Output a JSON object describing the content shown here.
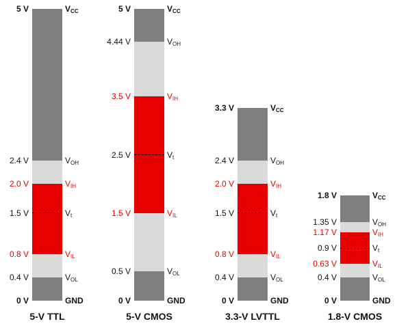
{
  "colors": {
    "dark": "#7f7f7f",
    "light": "#d9d9d9",
    "red": "#e60000",
    "text": "#111111",
    "red_text": "#e60000"
  },
  "families": [
    {
      "title": "5-V TTL",
      "levels": {
        "vcc": 5,
        "voh": 2.4,
        "vih": 2.0,
        "vt": 1.5,
        "vil": 0.8,
        "vol": 0.4,
        "gnd": 0
      },
      "left_labels": [
        {
          "v": 5,
          "text": "5 V",
          "bold": true
        },
        {
          "v": 2.4,
          "text": "2.4 V"
        },
        {
          "v": 2.0,
          "text": "2.0 V",
          "red": true
        },
        {
          "v": 1.5,
          "text": "1.5 V"
        },
        {
          "v": 0.8,
          "text": "0.8 V",
          "red": true
        },
        {
          "v": 0.4,
          "text": "0.4 V"
        },
        {
          "v": 0,
          "text": "0 V",
          "bold": true
        }
      ],
      "right_labels": [
        {
          "v": 5,
          "main": "V",
          "sub": "CC",
          "bold": true
        },
        {
          "v": 2.4,
          "main": "V",
          "sub": "OH"
        },
        {
          "v": 2.0,
          "main": "V",
          "sub": "IH",
          "red": true
        },
        {
          "v": 1.5,
          "main": "V",
          "sub": "t"
        },
        {
          "v": 0.8,
          "main": "V",
          "sub": "IL",
          "red": true
        },
        {
          "v": 0.4,
          "main": "V",
          "sub": "OL"
        },
        {
          "v": 0,
          "main": "GND",
          "sub": "",
          "bold": true
        }
      ]
    },
    {
      "title": "5-V CMOS",
      "levels": {
        "vcc": 5,
        "voh": 4.44,
        "vih": 3.5,
        "vt": 2.5,
        "vil": 1.5,
        "vol": 0.5,
        "gnd": 0
      },
      "left_labels": [
        {
          "v": 5,
          "text": "5 V",
          "bold": true
        },
        {
          "v": 4.44,
          "text": "4.44 V"
        },
        {
          "v": 3.5,
          "text": "3.5 V",
          "red": true
        },
        {
          "v": 2.5,
          "text": "2.5 V"
        },
        {
          "v": 1.5,
          "text": "1.5 V",
          "red": true
        },
        {
          "v": 0.5,
          "text": "0.5 V"
        },
        {
          "v": 0,
          "text": "0 V",
          "bold": true
        }
      ],
      "right_labels": [
        {
          "v": 5,
          "main": "V",
          "sub": "CC",
          "bold": true
        },
        {
          "v": 4.44,
          "main": "V",
          "sub": "OH"
        },
        {
          "v": 3.5,
          "main": "V",
          "sub": "IH",
          "red": true
        },
        {
          "v": 2.5,
          "main": "V",
          "sub": "t"
        },
        {
          "v": 1.5,
          "main": "V",
          "sub": "IL",
          "red": true
        },
        {
          "v": 0.5,
          "main": "V",
          "sub": "OL"
        },
        {
          "v": 0,
          "main": "GND",
          "sub": "",
          "bold": true
        }
      ]
    },
    {
      "title": "3.3-V LVTTL",
      "levels": {
        "vcc": 3.3,
        "voh": 2.4,
        "vih": 2.0,
        "vt": 1.5,
        "vil": 0.8,
        "vol": 0.4,
        "gnd": 0
      },
      "left_labels": [
        {
          "v": 3.3,
          "text": "3.3 V",
          "bold": true
        },
        {
          "v": 2.4,
          "text": "2.4 V"
        },
        {
          "v": 2.0,
          "text": "2.0 V",
          "red": true
        },
        {
          "v": 1.5,
          "text": "1.5 V"
        },
        {
          "v": 0.8,
          "text": "0.8 V",
          "red": true
        },
        {
          "v": 0.4,
          "text": "0.4 V"
        },
        {
          "v": 0,
          "text": "0 V",
          "bold": true
        }
      ],
      "right_labels": [
        {
          "v": 3.3,
          "main": "V",
          "sub": "CC",
          "bold": true
        },
        {
          "v": 2.4,
          "main": "V",
          "sub": "OH"
        },
        {
          "v": 2.0,
          "main": "V",
          "sub": "IH",
          "red": true
        },
        {
          "v": 1.5,
          "main": "V",
          "sub": "t"
        },
        {
          "v": 0.8,
          "main": "V",
          "sub": "IL",
          "red": true
        },
        {
          "v": 0.4,
          "main": "V",
          "sub": "OL"
        },
        {
          "v": 0,
          "main": "GND",
          "sub": "",
          "bold": true
        }
      ]
    },
    {
      "title": "1.8-V CMOS",
      "levels": {
        "vcc": 1.8,
        "voh": 1.35,
        "vih": 1.17,
        "vt": 0.9,
        "vil": 0.63,
        "vol": 0.4,
        "gnd": 0
      },
      "left_labels": [
        {
          "v": 1.8,
          "text": "1.8 V",
          "bold": true
        },
        {
          "v": 1.35,
          "text": "1.35 V"
        },
        {
          "v": 1.17,
          "text": "1.17 V",
          "red": true
        },
        {
          "v": 0.9,
          "text": "0.9 V"
        },
        {
          "v": 0.63,
          "text": "0.63 V",
          "red": true
        },
        {
          "v": 0.4,
          "text": "0.4 V"
        },
        {
          "v": 0,
          "text": "0 V",
          "bold": true
        }
      ],
      "right_labels": [
        {
          "v": 1.8,
          "main": "V",
          "sub": "CC",
          "bold": true
        },
        {
          "v": 1.35,
          "main": "V",
          "sub": "OH"
        },
        {
          "v": 1.17,
          "main": "V",
          "sub": "IH",
          "red": true
        },
        {
          "v": 0.9,
          "main": "V",
          "sub": "t"
        },
        {
          "v": 0.63,
          "main": "V",
          "sub": "IL",
          "red": true
        },
        {
          "v": 0.4,
          "main": "V",
          "sub": "OL"
        },
        {
          "v": 0,
          "main": "GND",
          "sub": "",
          "bold": true
        }
      ]
    }
  ]
}
